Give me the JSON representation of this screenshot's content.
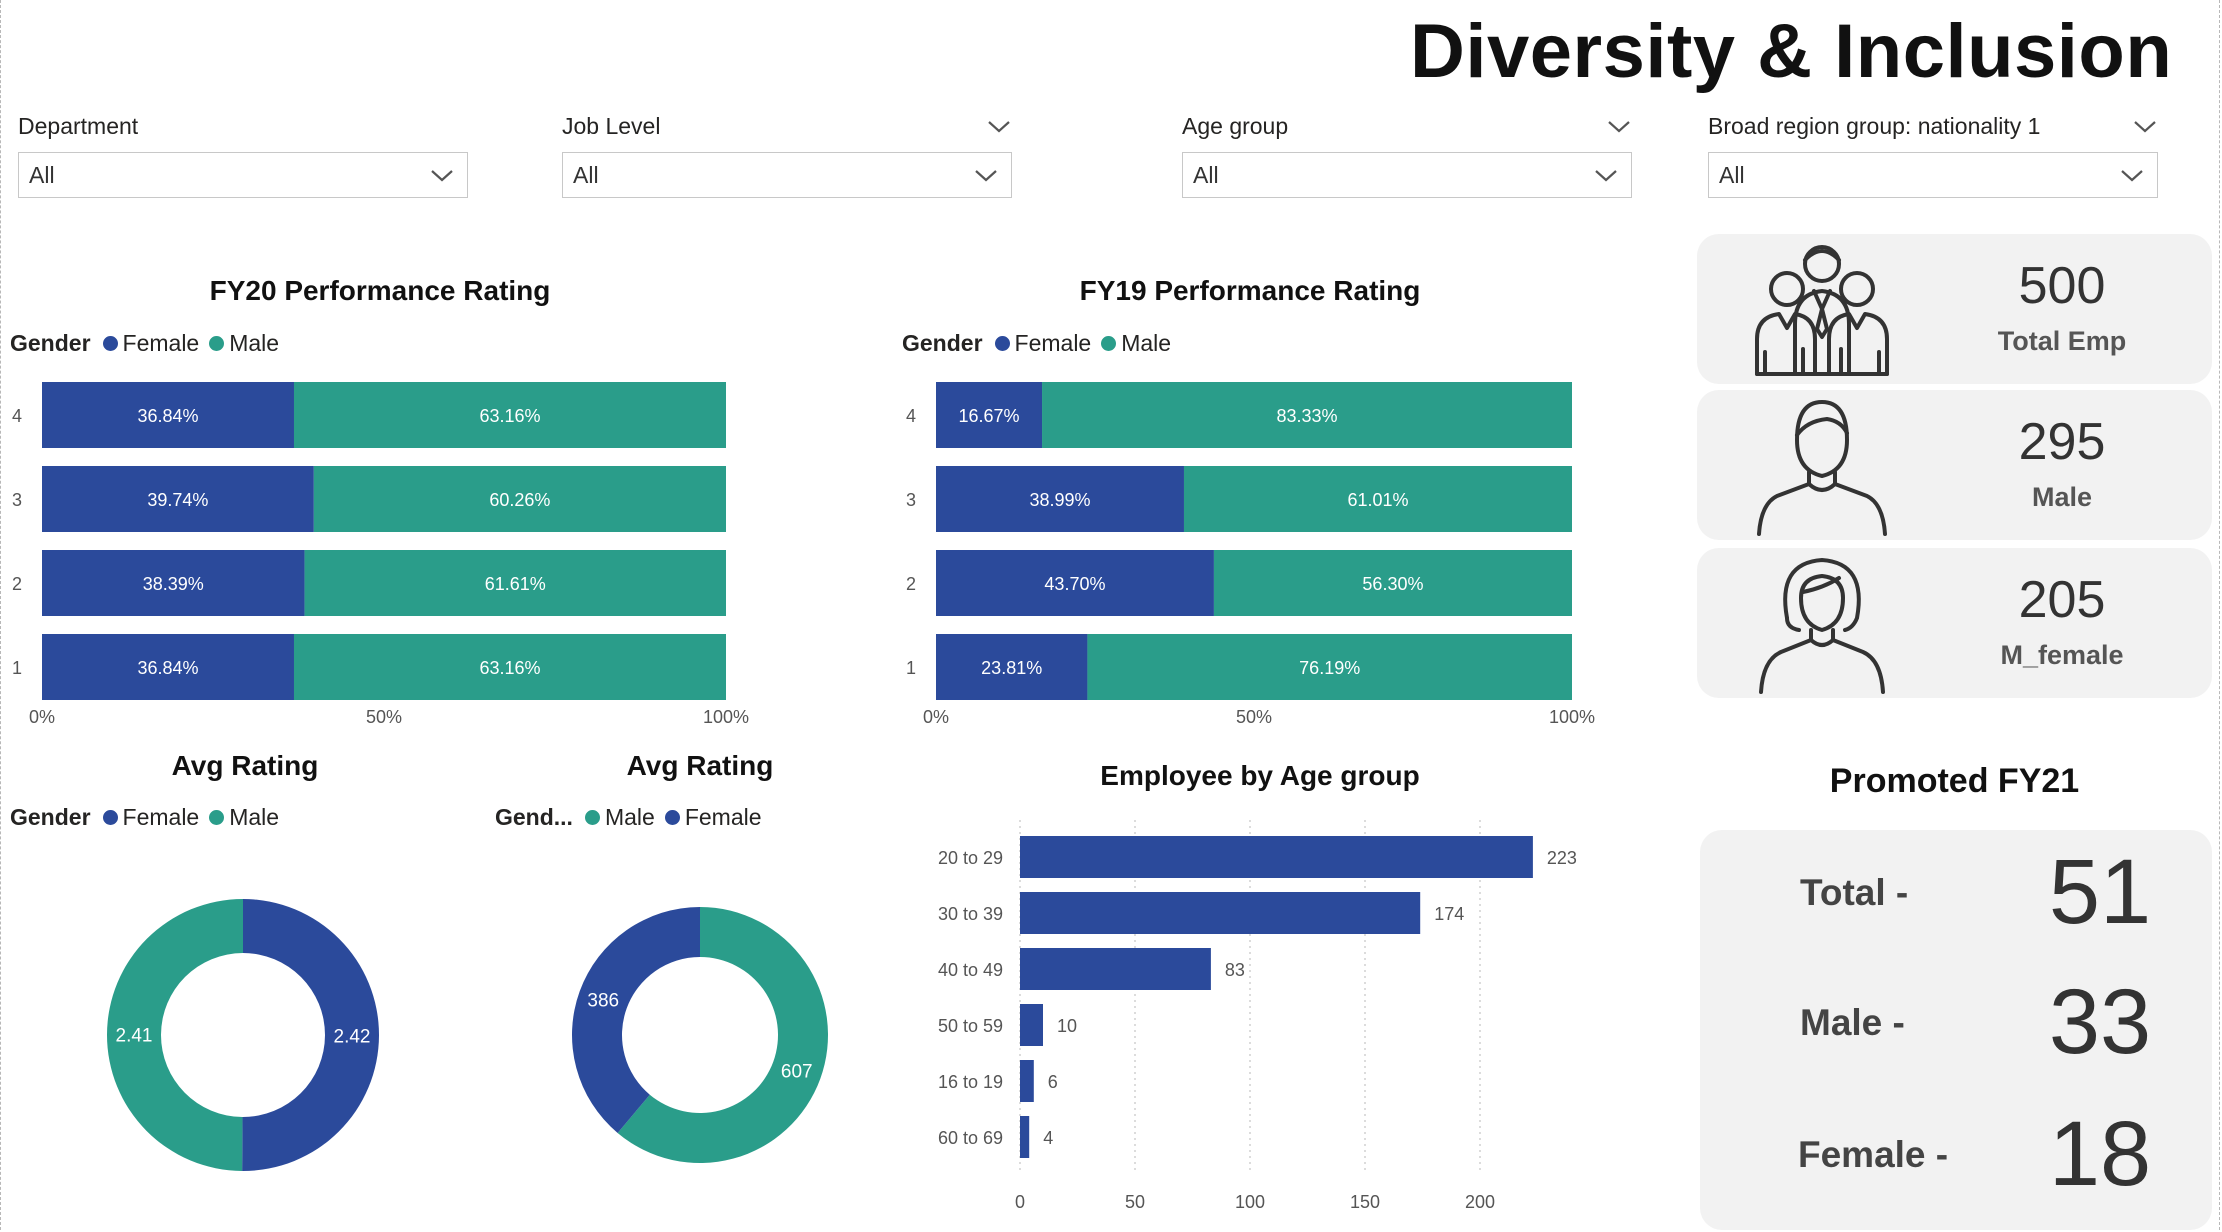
{
  "title": "Diversity & Inclusion",
  "colors": {
    "female": "#2b4a9b",
    "male": "#2a9d8a",
    "card_bg": "#f2f2f2"
  },
  "slicers": [
    {
      "label": "Department",
      "value": "All",
      "label_chevron": false
    },
    {
      "label": "Job Level",
      "value": "All",
      "label_chevron": true
    },
    {
      "label": "Age group",
      "value": "All",
      "label_chevron": true
    },
    {
      "label": "Broad region group: nationality 1",
      "value": "All",
      "label_chevron": true
    }
  ],
  "fy20": {
    "title": "FY20 Performance Rating",
    "legend_title": "Gender",
    "legend": [
      "Female",
      "Male"
    ],
    "ticks": [
      "0%",
      "50%",
      "100%"
    ]
  },
  "fy19": {
    "title": "FY19 Performance Rating",
    "legend_title": "Gender",
    "legend": [
      "Female",
      "Male"
    ],
    "ticks": [
      "0%",
      "50%",
      "100%"
    ]
  },
  "avg1": {
    "title": "Avg Rating",
    "legend_title": "Gender",
    "legend": [
      "Female",
      "Male"
    ]
  },
  "avg2": {
    "title": "Avg Rating",
    "legend_title": "Gend...",
    "legend": [
      "Male",
      "Female"
    ]
  },
  "age": {
    "title": "Employee by Age group",
    "ticks": [
      "0",
      "50",
      "100",
      "150",
      "200"
    ]
  },
  "kpis": [
    {
      "icon": "group-people-icon",
      "value": "500",
      "label": "Total Emp"
    },
    {
      "icon": "male-person-icon",
      "value": "295",
      "label": "Male"
    },
    {
      "icon": "female-person-icon",
      "value": "205",
      "label": "M_female"
    }
  ],
  "promoted": {
    "title": "Promoted FY21",
    "rows": [
      {
        "label": "Total -",
        "value": "51"
      },
      {
        "label": "Male -",
        "value": "33"
      },
      {
        "label": "Female -",
        "value": "18"
      }
    ]
  },
  "chart_data": [
    {
      "type": "bar",
      "title": "FY20 Performance Rating",
      "orientation": "horizontal-stacked-100",
      "categories": [
        "4",
        "3",
        "2",
        "1"
      ],
      "series": [
        {
          "name": "Female",
          "values": [
            36.84,
            39.74,
            38.39,
            36.84
          ],
          "labels": [
            "36.84%",
            "39.74%",
            "38.39%",
            "36.84%"
          ]
        },
        {
          "name": "Male",
          "values": [
            63.16,
            60.26,
            61.61,
            63.16
          ],
          "labels": [
            "63.16%",
            "60.26%",
            "61.61%",
            "63.16%"
          ]
        }
      ],
      "xlim": [
        0,
        100
      ],
      "legend": "top-left"
    },
    {
      "type": "bar",
      "title": "FY19 Performance Rating",
      "orientation": "horizontal-stacked-100",
      "categories": [
        "4",
        "3",
        "2",
        "1"
      ],
      "series": [
        {
          "name": "Female",
          "values": [
            16.67,
            38.99,
            43.7,
            23.81
          ],
          "labels": [
            "16.67%",
            "38.99%",
            "43.70%",
            "23.81%"
          ]
        },
        {
          "name": "Male",
          "values": [
            83.33,
            61.01,
            56.3,
            76.19
          ],
          "labels": [
            "83.33%",
            "61.01%",
            "56.30%",
            "76.19%"
          ]
        }
      ],
      "xlim": [
        0,
        100
      ],
      "legend": "top-left"
    },
    {
      "type": "pie",
      "title": "Avg Rating",
      "donut": true,
      "slices": [
        {
          "name": "Female",
          "value": 2.42,
          "label": "2.42"
        },
        {
          "name": "Male",
          "value": 2.41,
          "label": "2.41"
        }
      ],
      "legend": "top-left"
    },
    {
      "type": "pie",
      "title": "Avg Rating",
      "donut": true,
      "slices": [
        {
          "name": "Male",
          "value": 607,
          "label": "607"
        },
        {
          "name": "Female",
          "value": 386,
          "label": "386"
        }
      ],
      "legend": "top-left"
    },
    {
      "type": "bar",
      "title": "Employee by Age group",
      "orientation": "horizontal",
      "categories": [
        "20 to 29",
        "30 to 39",
        "40 to 49",
        "50 to 59",
        "16 to 19",
        "60 to 69"
      ],
      "values": [
        223,
        174,
        83,
        10,
        6,
        4
      ],
      "labels": [
        "223",
        "174",
        "83",
        "10",
        "6",
        "4"
      ],
      "xlim": [
        0,
        230
      ],
      "grid": true
    }
  ]
}
